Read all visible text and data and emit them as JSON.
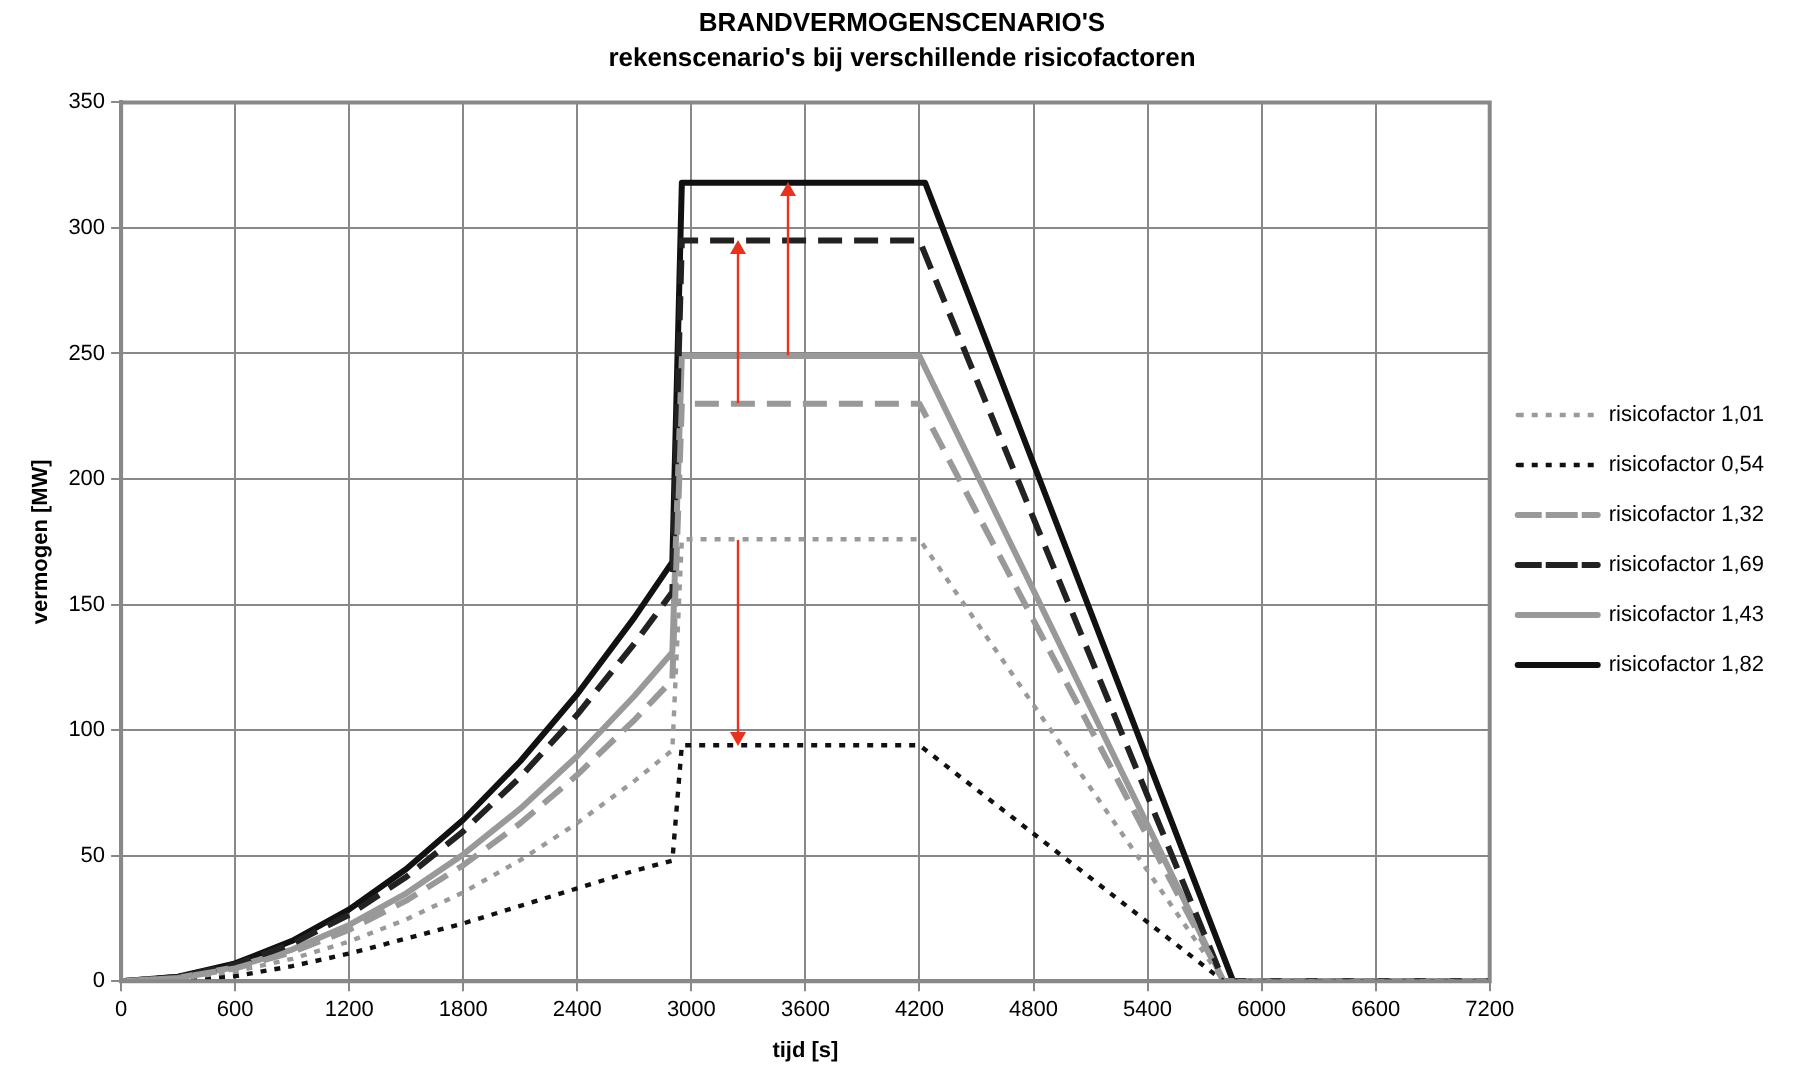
{
  "chart_data": {
    "type": "line",
    "title": "BRANDVERMOGENSCENARIO'S",
    "subtitle": "rekenscenario's bij verschillende risicofactoren",
    "xlabel": "tijd [s]",
    "ylabel": "vermogen [MW]",
    "xlim": [
      0,
      7200
    ],
    "xticks": [
      0,
      600,
      1200,
      1800,
      2400,
      3000,
      3600,
      4200,
      4800,
      5400,
      6000,
      6600,
      7200
    ],
    "ylim": [
      0,
      350
    ],
    "yticks": [
      0,
      50,
      100,
      150,
      200,
      250,
      300,
      350
    ],
    "grid": true,
    "legend": "right",
    "marker": "none",
    "series": [
      {
        "name": "risicofactor 1,01",
        "color": "#9a9a9a",
        "line_style": "dotted",
        "x": [
          0,
          300,
          600,
          900,
          1200,
          1500,
          1800,
          2100,
          2400,
          2700,
          2900,
          2950,
          4200,
          5800,
          7200
        ],
        "values": [
          0,
          1.0,
          3.9,
          8.9,
          15.8,
          24.6,
          35.4,
          48.2,
          63.0,
          79.7,
          92,
          176,
          176,
          0,
          0
        ]
      },
      {
        "name": "risicofactor 0,54",
        "color": "#111111",
        "line_style": "dotted",
        "x": [
          0,
          300,
          600,
          900,
          1200,
          1500,
          1800,
          2100,
          2400,
          2700,
          2900,
          2950,
          4200,
          5800,
          7200
        ],
        "values": [
          0,
          0.5,
          2,
          6,
          11,
          17,
          23,
          30,
          37,
          44,
          48,
          94,
          94,
          0,
          0
        ]
      },
      {
        "name": "risicofactor 1,32",
        "color": "#999999",
        "line_style": "dashed",
        "x": [
          0,
          300,
          600,
          900,
          1200,
          1500,
          1800,
          2100,
          2400,
          2700,
          2900,
          2950,
          4200,
          5800,
          7200
        ],
        "values": [
          0,
          1.3,
          5.1,
          11.6,
          20.5,
          32.1,
          46.2,
          62.9,
          82.2,
          104.0,
          120,
          230,
          230,
          0,
          0
        ]
      },
      {
        "name": "risicofactor 1,69",
        "color": "#222222",
        "line_style": "dashed",
        "x": [
          0,
          300,
          600,
          900,
          1200,
          1500,
          1800,
          2100,
          2400,
          2700,
          2900,
          2950,
          4200,
          5800,
          7200
        ],
        "values": [
          0,
          1.7,
          6.6,
          14.9,
          26.5,
          41.5,
          59.7,
          81.3,
          106.2,
          134.4,
          155,
          295,
          295,
          0,
          0
        ]
      },
      {
        "name": "risicofactor 1,43",
        "color": "#999999",
        "line_style": "solid",
        "x": [
          0,
          300,
          600,
          900,
          1200,
          1500,
          1800,
          2100,
          2400,
          2700,
          2900,
          2950,
          4200,
          5800,
          7200
        ],
        "values": [
          0,
          1.4,
          5.6,
          12.6,
          22.4,
          35.0,
          50.5,
          68.7,
          89.7,
          113.6,
          131,
          249,
          249,
          0,
          0
        ]
      },
      {
        "name": "risicofactor 1,82",
        "color": "#111111",
        "line_style": "solid",
        "x": [
          0,
          300,
          600,
          900,
          1200,
          1500,
          1800,
          2100,
          2400,
          2700,
          2900,
          2950,
          4230,
          5850,
          7200
        ],
        "values": [
          0,
          1.8,
          7.1,
          16.1,
          28.6,
          44.7,
          64.3,
          87.6,
          114.4,
          144.8,
          167,
          318,
          318,
          0,
          0
        ]
      }
    ]
  }
}
